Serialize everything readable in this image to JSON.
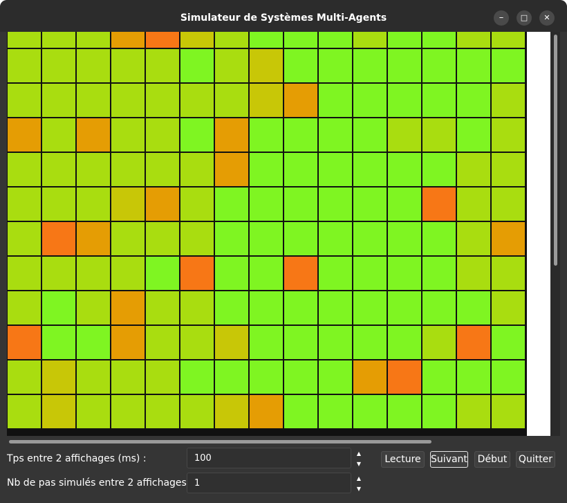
{
  "window": {
    "title": "Simulateur de Systèmes Multi-Agents",
    "minimize_icon": "–",
    "maximize_icon": "□",
    "close_icon": "✕"
  },
  "grid": {
    "columns": 15,
    "rows_visible": 12,
    "first_row_partial": true,
    "color_key": {
      "g": "#7ff522",
      "l": "#a9dd10",
      "y": "#c8c707",
      "o": "#e59d04",
      "r": "#f77716"
    },
    "cells": [
      "lllorylggglgglll",
      "lllllglygggggggl",
      "lllllllyoggggglll",
      "olollgoggggllglll",
      "lllllloggggggllll",
      "lllyolggggggrlll",
      "lrolllggggggglol",
      "llllgrggrgggglll",
      "lglollggggggggll",
      "rggollyggggglrgl",
      "lylllgggggorgggl",
      "lyllllyogggggllll"
    ]
  },
  "controls": {
    "delay_label": "Tps entre 2 affichages (ms) :",
    "delay_value": "100",
    "steps_label": "Nb de pas simulés entre 2 affichages :",
    "steps_value": "1",
    "spin_up": "▲",
    "spin_down": "▼"
  },
  "buttons": {
    "play": "Lecture",
    "next": "Suivant",
    "start": "Début",
    "quit": "Quitter"
  }
}
